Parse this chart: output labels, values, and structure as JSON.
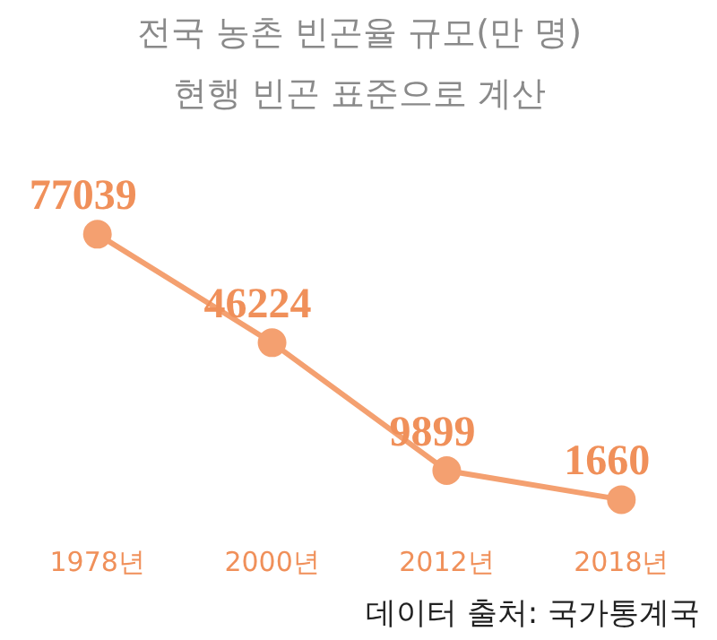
{
  "chart_data": {
    "type": "line",
    "title": "전국 농촌 빈곤율 규모(만 명)",
    "subtitle": "현행 빈곤 표준으로 계산",
    "categories": [
      "1978년",
      "2000년",
      "2012년",
      "2018년"
    ],
    "series": [
      {
        "color": "#f4a070",
        "values": [
          77039,
          46224,
          9899,
          1660
        ]
      }
    ],
    "data_labels": true,
    "marker": "circle",
    "line_style": "solid",
    "grid": false,
    "annotations": [
      "데이터 출처: 국가통계국"
    ]
  }
}
